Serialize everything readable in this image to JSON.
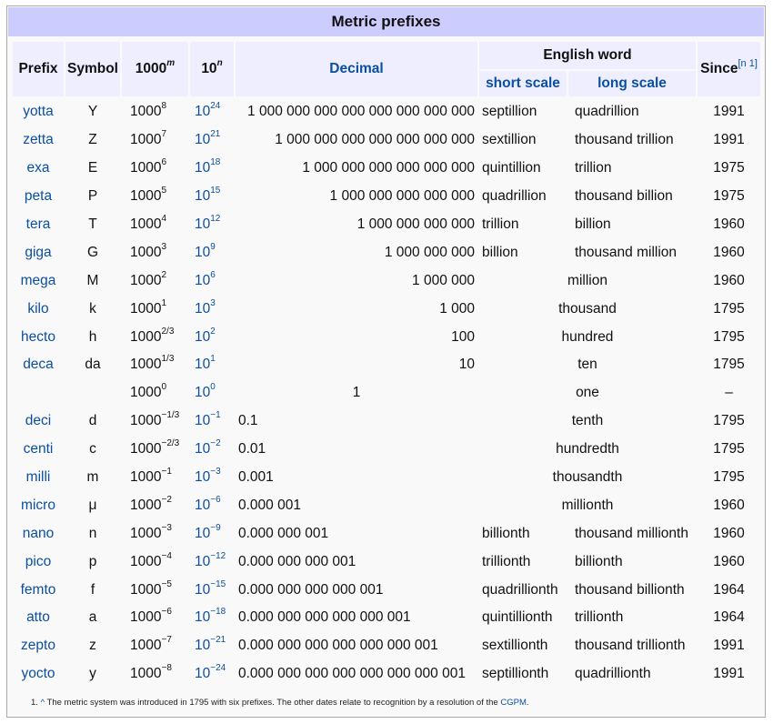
{
  "title": "Metric prefixes",
  "headers": {
    "prefix": "Prefix",
    "symbol": "Symbol",
    "pow1000_base": "1000",
    "pow1000_exp": "m",
    "pow10_base": "10",
    "pow10_exp": "n",
    "decimal": "Decimal",
    "english_word": "English word",
    "short_scale": "short scale",
    "long_scale": "long scale",
    "since": "Since",
    "since_note": "[n 1]"
  },
  "rows": [
    {
      "prefix": "yotta",
      "symbol": "Y",
      "m": "8",
      "n": "24",
      "decimal": "1 000 000 000 000 000 000 000 000",
      "short": "septillion",
      "long": "quadrillion",
      "since": "1991"
    },
    {
      "prefix": "zetta",
      "symbol": "Z",
      "m": "7",
      "n": "21",
      "decimal": "1 000 000 000 000 000 000 000",
      "short": "sextillion",
      "long": "thousand trillion",
      "since": "1991"
    },
    {
      "prefix": "exa",
      "symbol": "E",
      "m": "6",
      "n": "18",
      "decimal": "1 000 000 000 000 000 000",
      "short": "quintillion",
      "long": "trillion",
      "since": "1975"
    },
    {
      "prefix": "peta",
      "symbol": "P",
      "m": "5",
      "n": "15",
      "decimal": "1 000 000 000 000 000",
      "short": "quadrillion",
      "long": "thousand billion",
      "since": "1975"
    },
    {
      "prefix": "tera",
      "symbol": "T",
      "m": "4",
      "n": "12",
      "decimal": "1 000 000 000 000",
      "short": "trillion",
      "long": "billion",
      "since": "1960"
    },
    {
      "prefix": "giga",
      "symbol": "G",
      "m": "3",
      "n": "9",
      "decimal": "1 000 000 000",
      "short": "billion",
      "long": "thousand million",
      "since": "1960"
    },
    {
      "prefix": "mega",
      "symbol": "M",
      "m": "2",
      "n": "6",
      "decimal": "1 000 000",
      "word": "million",
      "since": "1960"
    },
    {
      "prefix": "kilo",
      "symbol": "k",
      "m": "1",
      "n": "3",
      "decimal": "1 000",
      "word": "thousand",
      "since": "1795"
    },
    {
      "prefix": "hecto",
      "symbol": "h",
      "m": "2/3",
      "n": "2",
      "decimal": "100",
      "word": "hundred",
      "since": "1795"
    },
    {
      "prefix": "deca",
      "symbol": "da",
      "m": "1/3",
      "n": "1",
      "decimal": "10",
      "word": "ten",
      "since": "1795"
    },
    {
      "prefix": "",
      "symbol": "",
      "m": "0",
      "n": "0",
      "decimal": "1",
      "word": "one",
      "since": "–"
    },
    {
      "prefix": "deci",
      "symbol": "d",
      "m": "−1/3",
      "n": "−1",
      "decimal": "0.1",
      "word": "tenth",
      "since": "1795"
    },
    {
      "prefix": "centi",
      "symbol": "c",
      "m": "−2/3",
      "n": "−2",
      "decimal": "0.01",
      "word": "hundredth",
      "since": "1795"
    },
    {
      "prefix": "milli",
      "symbol": "m",
      "m": "−1",
      "n": "−3",
      "decimal": "0.001",
      "word": "thousandth",
      "since": "1795"
    },
    {
      "prefix": "micro",
      "symbol": "μ",
      "m": "−2",
      "n": "−6",
      "decimal": "0.000 001",
      "word": "millionth",
      "since": "1960"
    },
    {
      "prefix": "nano",
      "symbol": "n",
      "m": "−3",
      "n": "−9",
      "decimal": "0.000 000 001",
      "short": "billionth",
      "long": "thousand millionth",
      "since": "1960"
    },
    {
      "prefix": "pico",
      "symbol": "p",
      "m": "−4",
      "n": "−12",
      "decimal": "0.000 000 000 001",
      "short": "trillionth",
      "long": "billionth",
      "since": "1960"
    },
    {
      "prefix": "femto",
      "symbol": "f",
      "m": "−5",
      "n": "−15",
      "decimal": "0.000 000 000 000 001",
      "short": "quadrillionth",
      "long": "thousand billionth",
      "since": "1964"
    },
    {
      "prefix": "atto",
      "symbol": "a",
      "m": "−6",
      "n": "−18",
      "decimal": "0.000 000 000 000 000 001",
      "short": "quintillionth",
      "long": "trillionth",
      "since": "1964"
    },
    {
      "prefix": "zepto",
      "symbol": "z",
      "m": "−7",
      "n": "−21",
      "decimal": "0.000 000 000 000 000 000 001",
      "short": "sextillionth",
      "long": "thousand trillionth",
      "since": "1991"
    },
    {
      "prefix": "yocto",
      "symbol": "y",
      "m": "−8",
      "n": "−24",
      "decimal": "0.000 000 000 000 000 000 000 001",
      "short": "septillionth",
      "long": "quadrillionth",
      "since": "1991"
    }
  ],
  "footnote": {
    "number": "1.",
    "caret": "^",
    "text": "The metric system was introduced in 1795 with six prefixes. The other dates relate to recognition by a resolution of the",
    "link": "CGPM",
    "end": "."
  }
}
